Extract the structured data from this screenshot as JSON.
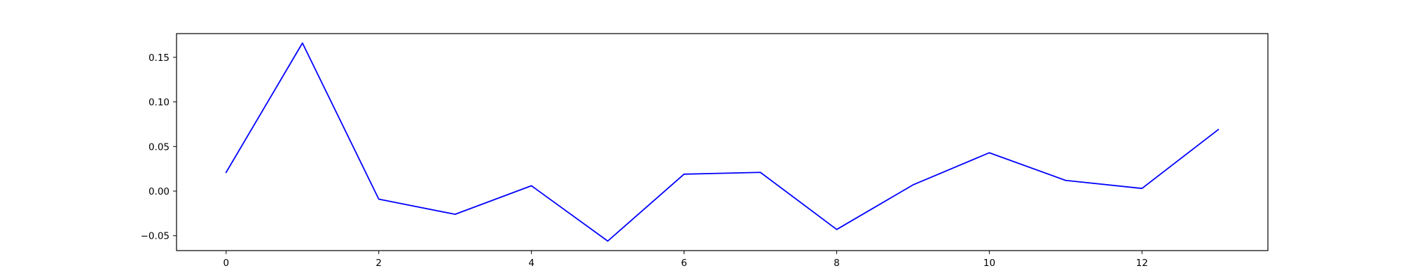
{
  "chart_data": {
    "type": "line",
    "title": "",
    "xlabel": "",
    "ylabel": "",
    "x": [
      0,
      1,
      2,
      3,
      4,
      5,
      6,
      7,
      8,
      9,
      10,
      11,
      12,
      13
    ],
    "series": [
      {
        "color": "#0000ff",
        "values": [
          0.021,
          0.166,
          -0.009,
          -0.026,
          0.006,
          -0.056,
          0.019,
          0.021,
          -0.043,
          0.007,
          0.043,
          0.012,
          0.003,
          0.069
        ]
      }
    ],
    "xlim": [
      -0.65,
      13.65
    ],
    "ylim": [
      -0.0667,
      0.1766
    ],
    "xticks": [
      0,
      2,
      4,
      6,
      8,
      10,
      12
    ],
    "xtick_labels": [
      "0",
      "2",
      "4",
      "6",
      "8",
      "10",
      "12"
    ],
    "yticks": [
      -0.05,
      0.0,
      0.05,
      0.1,
      0.15
    ],
    "ytick_labels": [
      "−0.05",
      "0.00",
      "0.05",
      "0.10",
      "0.15"
    ],
    "grid": false,
    "legend": "none"
  }
}
